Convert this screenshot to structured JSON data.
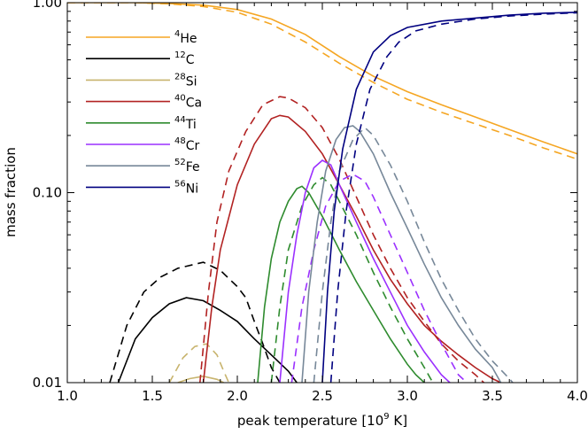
{
  "chart_data": {
    "type": "line",
    "xlabel": "peak temperature [10^9 K]",
    "xlabel_parts": {
      "main": "peak temperature [10",
      "sup": "9",
      "tail": " K]"
    },
    "ylabel": "mass fraction",
    "xlim": [
      1.0,
      4.0
    ],
    "ylim": [
      0.01,
      1.0
    ],
    "yscale": "log",
    "grid": false,
    "legend_position": "top-left",
    "x_ticks": [
      1.0,
      1.5,
      2.0,
      2.5,
      3.0,
      3.5,
      4.0
    ],
    "x_tick_labels": [
      "1.0",
      "1.5",
      "2.0",
      "2.5",
      "3.0",
      "3.5",
      "4.0"
    ],
    "y_ticks": [
      1.0,
      0.1,
      0.01
    ],
    "y_tick_labels": [
      "1.00",
      "0.10",
      "0.01"
    ],
    "series": [
      {
        "name": "4He",
        "mass_number": "4",
        "element": "He",
        "color": "#f5a623",
        "solid": [
          [
            1.0,
            1.0
          ],
          [
            1.4,
            1.0
          ],
          [
            1.6,
            0.99
          ],
          [
            1.8,
            0.97
          ],
          [
            2.0,
            0.92
          ],
          [
            2.2,
            0.82
          ],
          [
            2.4,
            0.68
          ],
          [
            2.6,
            0.52
          ],
          [
            2.8,
            0.41
          ],
          [
            3.0,
            0.34
          ],
          [
            3.2,
            0.29
          ],
          [
            3.4,
            0.25
          ],
          [
            3.6,
            0.215
          ],
          [
            3.8,
            0.185
          ],
          [
            4.0,
            0.16
          ]
        ],
        "dashed": [
          [
            1.0,
            1.0
          ],
          [
            1.4,
            1.0
          ],
          [
            1.6,
            0.985
          ],
          [
            1.8,
            0.955
          ],
          [
            2.0,
            0.89
          ],
          [
            2.2,
            0.77
          ],
          [
            2.4,
            0.62
          ],
          [
            2.6,
            0.48
          ],
          [
            2.8,
            0.38
          ],
          [
            3.0,
            0.31
          ],
          [
            3.2,
            0.265
          ],
          [
            3.4,
            0.23
          ],
          [
            3.6,
            0.2
          ],
          [
            3.8,
            0.172
          ],
          [
            4.0,
            0.15
          ]
        ]
      },
      {
        "name": "12C",
        "mass_number": "12",
        "element": "C",
        "color": "#000000",
        "solid": [
          [
            1.3,
            0.01
          ],
          [
            1.4,
            0.017
          ],
          [
            1.5,
            0.022
          ],
          [
            1.6,
            0.026
          ],
          [
            1.7,
            0.028
          ],
          [
            1.8,
            0.027
          ],
          [
            1.9,
            0.024
          ],
          [
            2.0,
            0.021
          ],
          [
            2.1,
            0.017
          ],
          [
            2.2,
            0.014
          ],
          [
            2.3,
            0.0115
          ],
          [
            2.35,
            0.01
          ]
        ],
        "dashed": [
          [
            1.25,
            0.01
          ],
          [
            1.35,
            0.02
          ],
          [
            1.45,
            0.03
          ],
          [
            1.55,
            0.036
          ],
          [
            1.65,
            0.04
          ],
          [
            1.7,
            0.041
          ],
          [
            1.8,
            0.043
          ],
          [
            1.9,
            0.039
          ],
          [
            2.0,
            0.032
          ],
          [
            2.05,
            0.028
          ],
          [
            2.1,
            0.021
          ],
          [
            2.15,
            0.016
          ],
          [
            2.2,
            0.012
          ],
          [
            2.25,
            0.01
          ]
        ]
      },
      {
        "name": "28Si",
        "mass_number": "28",
        "element": "Si",
        "color": "#c8b46e",
        "solid": [
          [
            1.65,
            0.01
          ],
          [
            1.72,
            0.0105
          ],
          [
            1.8,
            0.0108
          ],
          [
            1.88,
            0.0104
          ],
          [
            1.92,
            0.01
          ]
        ],
        "dashed": [
          [
            1.6,
            0.01
          ],
          [
            1.68,
            0.0135
          ],
          [
            1.75,
            0.0155
          ],
          [
            1.82,
            0.016
          ],
          [
            1.88,
            0.014
          ],
          [
            1.92,
            0.0115
          ],
          [
            1.95,
            0.01
          ]
        ]
      },
      {
        "name": "40Ca",
        "mass_number": "40",
        "element": "Ca",
        "color": "#b22222",
        "solid": [
          [
            1.8,
            0.01
          ],
          [
            1.85,
            0.025
          ],
          [
            1.9,
            0.05
          ],
          [
            2.0,
            0.11
          ],
          [
            2.1,
            0.18
          ],
          [
            2.2,
            0.245
          ],
          [
            2.25,
            0.255
          ],
          [
            2.3,
            0.25
          ],
          [
            2.4,
            0.21
          ],
          [
            2.5,
            0.16
          ],
          [
            2.6,
            0.11
          ],
          [
            2.7,
            0.075
          ],
          [
            2.8,
            0.05
          ],
          [
            2.9,
            0.035
          ],
          [
            3.0,
            0.026
          ],
          [
            3.1,
            0.02
          ],
          [
            3.2,
            0.0165
          ],
          [
            3.3,
            0.014
          ],
          [
            3.4,
            0.012
          ],
          [
            3.5,
            0.0105
          ],
          [
            3.55,
            0.01
          ]
        ],
        "dashed": [
          [
            1.78,
            0.01
          ],
          [
            1.83,
            0.03
          ],
          [
            1.88,
            0.07
          ],
          [
            1.95,
            0.13
          ],
          [
            2.05,
            0.21
          ],
          [
            2.15,
            0.29
          ],
          [
            2.25,
            0.32
          ],
          [
            2.3,
            0.315
          ],
          [
            2.4,
            0.28
          ],
          [
            2.5,
            0.22
          ],
          [
            2.6,
            0.15
          ],
          [
            2.7,
            0.095
          ],
          [
            2.8,
            0.06
          ],
          [
            2.9,
            0.04
          ],
          [
            3.0,
            0.028
          ],
          [
            3.1,
            0.021
          ],
          [
            3.2,
            0.016
          ],
          [
            3.3,
            0.013
          ],
          [
            3.4,
            0.011
          ],
          [
            3.45,
            0.01
          ]
        ]
      },
      {
        "name": "44Ti",
        "mass_number": "44",
        "element": "Ti",
        "color": "#2e8b2e",
        "solid": [
          [
            2.12,
            0.01
          ],
          [
            2.16,
            0.025
          ],
          [
            2.2,
            0.045
          ],
          [
            2.25,
            0.07
          ],
          [
            2.3,
            0.09
          ],
          [
            2.35,
            0.105
          ],
          [
            2.38,
            0.108
          ],
          [
            2.42,
            0.1
          ],
          [
            2.5,
            0.075
          ],
          [
            2.6,
            0.05
          ],
          [
            2.7,
            0.034
          ],
          [
            2.8,
            0.024
          ],
          [
            2.9,
            0.017
          ],
          [
            3.0,
            0.0125
          ],
          [
            3.05,
            0.011
          ],
          [
            3.1,
            0.01
          ]
        ],
        "dashed": [
          [
            2.2,
            0.01
          ],
          [
            2.25,
            0.025
          ],
          [
            2.3,
            0.05
          ],
          [
            2.38,
            0.085
          ],
          [
            2.45,
            0.11
          ],
          [
            2.5,
            0.12
          ],
          [
            2.55,
            0.11
          ],
          [
            2.6,
            0.09
          ],
          [
            2.7,
            0.06
          ],
          [
            2.8,
            0.038
          ],
          [
            2.9,
            0.025
          ],
          [
            3.0,
            0.017
          ],
          [
            3.1,
            0.012
          ],
          [
            3.15,
            0.01
          ]
        ]
      },
      {
        "name": "48Cr",
        "mass_number": "48",
        "element": "Cr",
        "color": "#9b30ff",
        "solid": [
          [
            2.25,
            0.01
          ],
          [
            2.3,
            0.03
          ],
          [
            2.35,
            0.06
          ],
          [
            2.4,
            0.1
          ],
          [
            2.45,
            0.135
          ],
          [
            2.5,
            0.148
          ],
          [
            2.55,
            0.14
          ],
          [
            2.6,
            0.11
          ],
          [
            2.7,
            0.07
          ],
          [
            2.8,
            0.045
          ],
          [
            2.9,
            0.03
          ],
          [
            3.0,
            0.02
          ],
          [
            3.1,
            0.0145
          ],
          [
            3.2,
            0.011
          ],
          [
            3.25,
            0.01
          ]
        ],
        "dashed": [
          [
            2.32,
            0.01
          ],
          [
            2.38,
            0.025
          ],
          [
            2.45,
            0.05
          ],
          [
            2.52,
            0.085
          ],
          [
            2.6,
            0.115
          ],
          [
            2.68,
            0.125
          ],
          [
            2.75,
            0.115
          ],
          [
            2.8,
            0.095
          ],
          [
            2.9,
            0.06
          ],
          [
            3.0,
            0.038
          ],
          [
            3.1,
            0.024
          ],
          [
            3.2,
            0.016
          ],
          [
            3.3,
            0.011
          ],
          [
            3.35,
            0.01
          ]
        ]
      },
      {
        "name": "52Fe",
        "mass_number": "52",
        "element": "Fe",
        "color": "#778899",
        "solid": [
          [
            2.38,
            0.01
          ],
          [
            2.42,
            0.03
          ],
          [
            2.47,
            0.07
          ],
          [
            2.52,
            0.13
          ],
          [
            2.58,
            0.19
          ],
          [
            2.63,
            0.22
          ],
          [
            2.68,
            0.225
          ],
          [
            2.72,
            0.21
          ],
          [
            2.8,
            0.16
          ],
          [
            2.9,
            0.1
          ],
          [
            3.0,
            0.065
          ],
          [
            3.1,
            0.042
          ],
          [
            3.2,
            0.028
          ],
          [
            3.3,
            0.02
          ],
          [
            3.4,
            0.015
          ],
          [
            3.5,
            0.012
          ],
          [
            3.55,
            0.01
          ]
        ],
        "dashed": [
          [
            2.45,
            0.01
          ],
          [
            2.5,
            0.03
          ],
          [
            2.55,
            0.07
          ],
          [
            2.6,
            0.13
          ],
          [
            2.68,
            0.19
          ],
          [
            2.75,
            0.22
          ],
          [
            2.8,
            0.2
          ],
          [
            2.9,
            0.14
          ],
          [
            3.0,
            0.09
          ],
          [
            3.1,
            0.055
          ],
          [
            3.2,
            0.035
          ],
          [
            3.3,
            0.024
          ],
          [
            3.4,
            0.017
          ],
          [
            3.5,
            0.013
          ],
          [
            3.6,
            0.0105
          ],
          [
            3.62,
            0.01
          ]
        ]
      },
      {
        "name": "56Ni",
        "mass_number": "56",
        "element": "Ni",
        "color": "#000080",
        "solid": [
          [
            2.5,
            0.01
          ],
          [
            2.53,
            0.03
          ],
          [
            2.57,
            0.08
          ],
          [
            2.62,
            0.17
          ],
          [
            2.7,
            0.35
          ],
          [
            2.8,
            0.55
          ],
          [
            2.9,
            0.67
          ],
          [
            3.0,
            0.74
          ],
          [
            3.2,
            0.8
          ],
          [
            3.4,
            0.83
          ],
          [
            3.6,
            0.86
          ],
          [
            3.8,
            0.88
          ],
          [
            4.0,
            0.89
          ]
        ],
        "dashed": [
          [
            2.55,
            0.01
          ],
          [
            2.59,
            0.03
          ],
          [
            2.64,
            0.08
          ],
          [
            2.7,
            0.18
          ],
          [
            2.78,
            0.35
          ],
          [
            2.88,
            0.52
          ],
          [
            2.95,
            0.62
          ],
          [
            3.05,
            0.71
          ],
          [
            3.2,
            0.77
          ],
          [
            3.4,
            0.82
          ],
          [
            3.6,
            0.85
          ],
          [
            3.8,
            0.87
          ],
          [
            4.0,
            0.885
          ]
        ]
      }
    ]
  }
}
